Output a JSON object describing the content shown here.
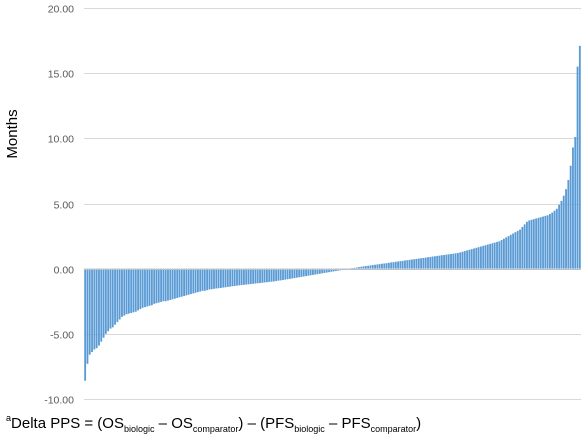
{
  "chart_data": {
    "type": "bar",
    "title": "",
    "xlabel": "",
    "ylabel": "Months",
    "ylim": [
      -10,
      20
    ],
    "yticks": [
      "20.00",
      "15.00",
      "10.00",
      "5.00",
      "0.00",
      "-5.00",
      "-10.00"
    ],
    "ytick_values": [
      20,
      15,
      10,
      5,
      0,
      -5,
      -10
    ],
    "grid": true,
    "legend": "none",
    "bar_color": "#5b9bd5",
    "values": [
      -8.6,
      -7.3,
      -6.6,
      -6.4,
      -6.2,
      -6.1,
      -5.9,
      -5.6,
      -5.3,
      -5.0,
      -4.8,
      -4.6,
      -4.5,
      -4.3,
      -4.1,
      -3.9,
      -3.7,
      -3.6,
      -3.5,
      -3.45,
      -3.4,
      -3.35,
      -3.3,
      -3.2,
      -3.1,
      -3.0,
      -2.95,
      -2.9,
      -2.85,
      -2.8,
      -2.7,
      -2.65,
      -2.6,
      -2.55,
      -2.5,
      -2.5,
      -2.45,
      -2.4,
      -2.35,
      -2.3,
      -2.25,
      -2.2,
      -2.15,
      -2.1,
      -2.05,
      -2.0,
      -1.95,
      -1.9,
      -1.85,
      -1.8,
      -1.75,
      -1.7,
      -1.7,
      -1.65,
      -1.6,
      -1.58,
      -1.55,
      -1.52,
      -1.5,
      -1.48,
      -1.45,
      -1.43,
      -1.4,
      -1.38,
      -1.35,
      -1.33,
      -1.3,
      -1.28,
      -1.26,
      -1.24,
      -1.22,
      -1.2,
      -1.18,
      -1.16,
      -1.14,
      -1.12,
      -1.1,
      -1.08,
      -1.06,
      -1.04,
      -1.02,
      -1.0,
      -0.98,
      -0.95,
      -0.92,
      -0.9,
      -0.87,
      -0.84,
      -0.81,
      -0.78,
      -0.75,
      -0.72,
      -0.69,
      -0.66,
      -0.63,
      -0.6,
      -0.57,
      -0.54,
      -0.51,
      -0.48,
      -0.45,
      -0.42,
      -0.39,
      -0.36,
      -0.33,
      -0.3,
      -0.27,
      -0.24,
      -0.21,
      -0.18,
      -0.15,
      -0.12,
      -0.09,
      -0.06,
      -0.03,
      0.0,
      0.03,
      0.06,
      0.09,
      0.12,
      0.15,
      0.18,
      0.2,
      0.22,
      0.25,
      0.28,
      0.3,
      0.33,
      0.35,
      0.38,
      0.4,
      0.42,
      0.45,
      0.48,
      0.5,
      0.53,
      0.55,
      0.58,
      0.6,
      0.63,
      0.65,
      0.68,
      0.7,
      0.73,
      0.75,
      0.78,
      0.8,
      0.82,
      0.85,
      0.88,
      0.9,
      0.93,
      0.95,
      0.98,
      1.0,
      1.03,
      1.05,
      1.08,
      1.1,
      1.13,
      1.15,
      1.18,
      1.2,
      1.25,
      1.3,
      1.35,
      1.4,
      1.45,
      1.5,
      1.55,
      1.6,
      1.65,
      1.7,
      1.75,
      1.8,
      1.85,
      1.9,
      1.95,
      2.0,
      2.05,
      2.1,
      2.2,
      2.3,
      2.4,
      2.5,
      2.6,
      2.7,
      2.8,
      2.9,
      3.0,
      3.2,
      3.4,
      3.6,
      3.7,
      3.75,
      3.8,
      3.85,
      3.9,
      3.95,
      4.0,
      4.05,
      4.1,
      4.2,
      4.3,
      4.45,
      4.6,
      4.9,
      5.2,
      5.6,
      6.1,
      6.8,
      7.9,
      9.3,
      10.1,
      15.5,
      17.1
    ]
  },
  "footnote": {
    "sup": "a",
    "text1": "Delta PPS = (OS",
    "sub1": "biologic",
    "text2": " – OS",
    "sub2": "comparator",
    "text3": ") – (PFS",
    "sub3": "biologic",
    "text4": " – PFS",
    "sub4": "comparator",
    "text5": ")"
  }
}
